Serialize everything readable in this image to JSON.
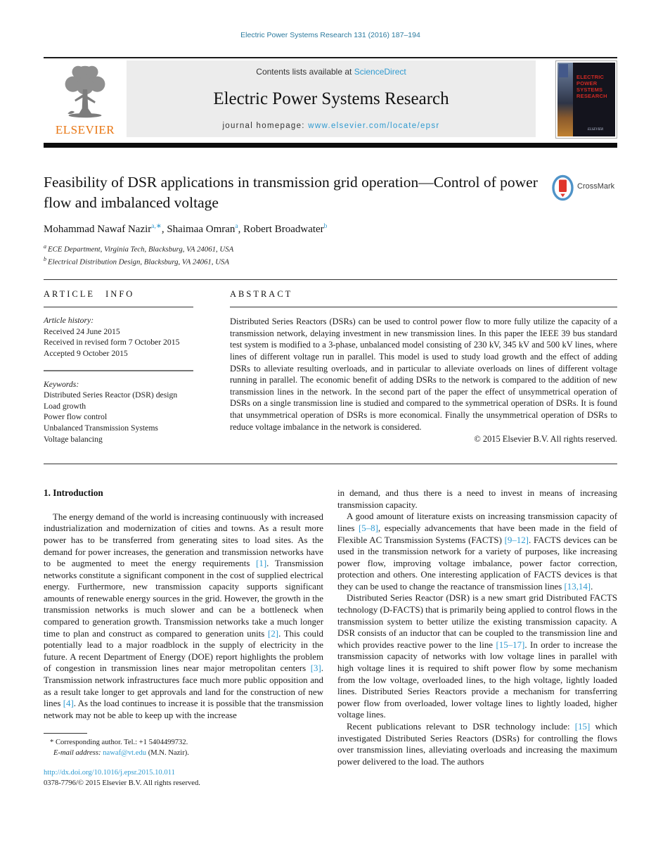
{
  "citation": "Electric Power Systems Research 131 (2016) 187–194",
  "header": {
    "contents_prefix": "Contents lists available at ",
    "sciencedirect": "ScienceDirect",
    "journal_title": "Electric Power Systems Research",
    "homepage_prefix": "journal homepage: ",
    "homepage_url": "www.elsevier.com/locate/epsr",
    "elsevier_wordmark": "ELSEVIER",
    "cover_title": "ELECTRIC POWER SYSTEMS RESEARCH",
    "cover_footer": "ELSEVIER"
  },
  "crossmark": {
    "label": "CrossMark"
  },
  "article": {
    "title": "Feasibility of DSR applications in transmission grid operation—Control of power flow and imbalanced voltage",
    "authors": [
      {
        "t": "Mohammad Nawaf Nazir"
      },
      {
        "t": "a,∗",
        "sup": true,
        "link": true
      },
      {
        "t": ", Shaimaa Omran"
      },
      {
        "t": "a",
        "sup": true,
        "link": true
      },
      {
        "t": ", Robert Broadwater"
      },
      {
        "t": "b",
        "sup": true,
        "link": true
      }
    ],
    "affiliation_a": [
      {
        "t": "a ",
        "sup": true
      },
      {
        "t": "ECE Department, Virginia Tech, Blacksburg, VA 24061, USA"
      }
    ],
    "affiliation_b": [
      {
        "t": "b ",
        "sup": true
      },
      {
        "t": "Electrical Distribution Design, Blacksburg, VA 24061, USA"
      }
    ]
  },
  "article_info": {
    "heading": "ARTICLE INFO",
    "history_label": "Article history:",
    "history": [
      "Received 24 June 2015",
      "Received in revised form 7 October 2015",
      "Accepted 9 October 2015"
    ],
    "keywords_label": "Keywords:",
    "keywords": [
      "Distributed Series Reactor (DSR) design",
      "Load growth",
      "Power flow control",
      "Unbalanced Transmission Systems",
      "Voltage balancing"
    ]
  },
  "abstract": {
    "heading": "ABSTRACT",
    "text": "Distributed Series Reactors (DSRs) can be used to control power flow to more fully utilize the capacity of a transmission network, delaying investment in new transmission lines. In this paper the IEEE 39 bus standard test system is modified to a 3-phase, unbalanced model consisting of 230 kV, 345 kV and 500 kV lines, where lines of different voltage run in parallel. This model is used to study load growth and the effect of adding DSRs to alleviate resulting overloads, and in particular to alleviate overloads on lines of different voltage running in parallel. The economic benefit of adding DSRs to the network is compared to the addition of new transmission lines in the network. In the second part of the paper the effect of unsymmetrical operation of DSRs on a single transmission line is studied and compared to the symmetrical operation of DSRs. It is found that unsymmetrical operation of DSRs is more economical. Finally the unsymmetrical operation of DSRs to reduce voltage imbalance in the network is considered.",
    "copyright": "© 2015 Elsevier B.V. All rights reserved."
  },
  "body": {
    "section_heading": "1. Introduction",
    "p1": [
      {
        "t": "The energy demand of the world is increasing continuously with increased industrialization and modernization of cities and towns. As a result more power has to be transferred from generating sites to load sites. As the demand for power increases, the generation and transmission networks have to be augmented to meet the energy requirements "
      },
      {
        "t": "[1]",
        "link": true
      },
      {
        "t": ". Transmission networks constitute a significant component in the cost of supplied electrical energy. Furthermore, new transmission capacity supports significant amounts of renewable energy sources in the grid. However, the growth in the transmission networks is much slower and can be a bottleneck when compared to generation growth. Transmission networks take a much longer time to plan and construct as compared to generation units "
      },
      {
        "t": "[2]",
        "link": true
      },
      {
        "t": ". This could potentially lead to a major roadblock in the supply of electricity in the future. A recent Department of Energy (DOE) report highlights the problem of congestion in transmission lines near major metropolitan centers "
      },
      {
        "t": "[3]",
        "link": true
      },
      {
        "t": ". Transmission network infrastructures face much more public opposition and as a result take longer to get approvals and land for the construction of new lines "
      },
      {
        "t": "[4]",
        "link": true
      },
      {
        "t": ". As the load continues to increase it is possible that the transmission network may not be able to keep up with the increase"
      }
    ],
    "p2": [
      {
        "t": "in demand, and thus there is a need to invest in means of increasing transmission capacity."
      }
    ],
    "p3": [
      {
        "t": "A good amount of literature exists on increasing transmission capacity of lines "
      },
      {
        "t": "[5–8]",
        "link": true
      },
      {
        "t": ", especially advancements that have been made in the field of Flexible AC Transmission Systems (FACTS) "
      },
      {
        "t": "[9–12]",
        "link": true
      },
      {
        "t": ". FACTS devices can be used in the transmission network for a variety of purposes, like increasing power flow, improving voltage imbalance, power factor correction, protection and others. One interesting application of FACTS devices is that they can be used to change the reactance of transmission lines "
      },
      {
        "t": "[13,14]",
        "link": true
      },
      {
        "t": "."
      }
    ],
    "p4": [
      {
        "t": "Distributed Series Reactor (DSR) is a new smart grid Distributed FACTS technology (D-FACTS) that is primarily being applied to control flows in the transmission system to better utilize the existing transmission capacity. A DSR consists of an inductor that can be coupled to the transmission line and which provides reactive power to the line "
      },
      {
        "t": "[15–17]",
        "link": true
      },
      {
        "t": ". In order to increase the transmission capacity of networks with low voltage lines in parallel with high voltage lines it is required to shift power flow by some mechanism from the low voltage, overloaded lines, to the high voltage, lightly loaded lines. Distributed Series Reactors provide a mechanism for transferring power flow from overloaded, lower voltage lines to lightly loaded, higher voltage lines."
      }
    ],
    "p5": [
      {
        "t": "Recent publications relevant to DSR technology include: "
      },
      {
        "t": "[15]",
        "link": true
      },
      {
        "t": " which investigated Distributed Series Reactors (DSRs) for controlling the flows over transmission lines, alleviating overloads and increasing the maximum power delivered to the load. The authors"
      }
    ]
  },
  "footnote": {
    "corresponding": "* Corresponding author. Tel.: +1 5404499732.",
    "email_line": [
      {
        "t": "E-mail address: ",
        "italic": true
      },
      {
        "t": "nawaf@vt.edu",
        "link": true
      },
      {
        "t": " (M.N. Nazir)."
      }
    ]
  },
  "bottom": {
    "doi": "http://dx.doi.org/10.1016/j.epsr.2015.10.011",
    "issn_line": "0378-7796/© 2015 Elsevier B.V. All rights reserved."
  },
  "colors": {
    "link_blue": "#2f9ad0",
    "citation_teal": "#2b7a9e",
    "elsevier_orange": "#e87511",
    "cover_red": "#cf2a24"
  }
}
